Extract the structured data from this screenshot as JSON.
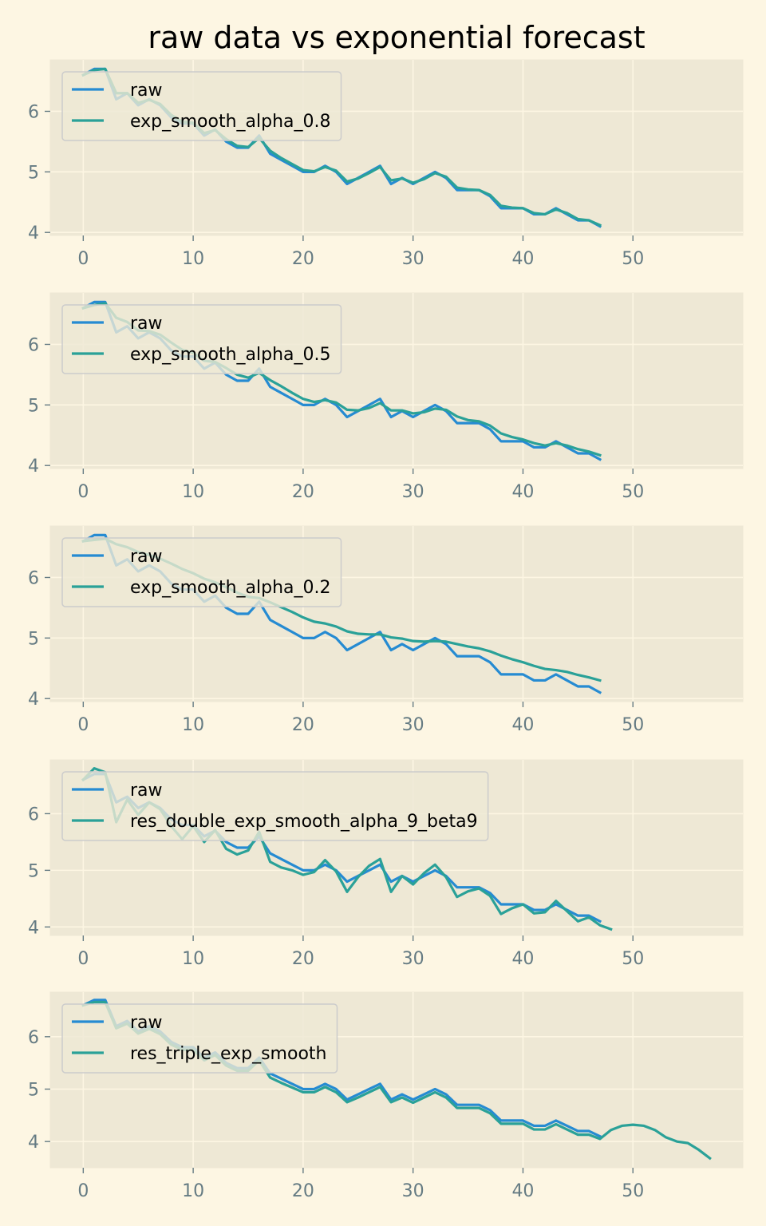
{
  "title": "raw data vs exponential forecast",
  "colors": {
    "figure_bg": "#fdf6e3",
    "axes_bg": "#eee8d5",
    "grid": "#fdf6e3",
    "tick": "#657b83",
    "raw": "#268bd2",
    "forecast": "#2aa198"
  },
  "chart_data": [
    {
      "type": "line",
      "xlim": [
        -3,
        60
      ],
      "ylim": [
        3.95,
        6.85
      ],
      "xticks": [
        0,
        10,
        20,
        30,
        40,
        50
      ],
      "yticks": [
        4,
        5,
        6
      ],
      "grid": true,
      "legend_position": "top-left",
      "series": [
        {
          "name": "raw",
          "x_start": 0,
          "values": [
            6.6,
            6.7,
            6.7,
            6.2,
            6.3,
            6.1,
            6.2,
            6.1,
            5.9,
            5.8,
            5.8,
            5.6,
            5.7,
            5.5,
            5.4,
            5.4,
            5.6,
            5.3,
            5.2,
            5.1,
            5.0,
            5.0,
            5.1,
            5.0,
            4.8,
            4.9,
            5.0,
            5.1,
            4.8,
            4.9,
            4.8,
            4.9,
            5.0,
            4.9,
            4.7,
            4.7,
            4.7,
            4.6,
            4.4,
            4.4,
            4.4,
            4.3,
            4.3,
            4.4,
            4.3,
            4.2,
            4.2,
            4.1
          ]
        },
        {
          "name": "exp_smooth_alpha_0.8",
          "x_start": 0,
          "values": [
            6.6,
            6.68,
            6.7,
            6.3,
            6.3,
            6.14,
            6.19,
            6.12,
            5.94,
            5.83,
            5.81,
            5.64,
            5.69,
            5.54,
            5.43,
            5.41,
            5.56,
            5.35,
            5.23,
            5.13,
            5.03,
            5.01,
            5.08,
            5.02,
            4.84,
            4.89,
            4.98,
            5.08,
            4.86,
            4.89,
            4.82,
            4.88,
            4.98,
            4.92,
            4.74,
            4.71,
            4.7,
            4.62,
            4.44,
            4.41,
            4.4,
            4.32,
            4.3,
            4.38,
            4.32,
            4.22,
            4.2,
            4.12
          ]
        }
      ]
    },
    {
      "type": "line",
      "xlim": [
        -3,
        60
      ],
      "ylim": [
        3.95,
        6.85
      ],
      "xticks": [
        0,
        10,
        20,
        30,
        40,
        50
      ],
      "yticks": [
        4,
        5,
        6
      ],
      "grid": true,
      "legend_position": "top-left",
      "series": [
        {
          "name": "raw",
          "x_start": 0,
          "values": [
            6.6,
            6.7,
            6.7,
            6.2,
            6.3,
            6.1,
            6.2,
            6.1,
            5.9,
            5.8,
            5.8,
            5.6,
            5.7,
            5.5,
            5.4,
            5.4,
            5.6,
            5.3,
            5.2,
            5.1,
            5.0,
            5.0,
            5.1,
            5.0,
            4.8,
            4.9,
            5.0,
            5.1,
            4.8,
            4.9,
            4.8,
            4.9,
            5.0,
            4.9,
            4.7,
            4.7,
            4.7,
            4.6,
            4.4,
            4.4,
            4.4,
            4.3,
            4.3,
            4.4,
            4.3,
            4.2,
            4.2,
            4.1
          ]
        },
        {
          "name": "exp_smooth_alpha_0.5",
          "x_start": 0,
          "values": [
            6.6,
            6.65,
            6.68,
            6.44,
            6.37,
            6.23,
            6.22,
            6.16,
            6.03,
            5.91,
            5.86,
            5.73,
            5.71,
            5.61,
            5.5,
            5.45,
            5.53,
            5.41,
            5.31,
            5.2,
            5.1,
            5.05,
            5.08,
            5.04,
            4.92,
            4.91,
            4.95,
            5.03,
            4.91,
            4.91,
            4.86,
            4.88,
            4.94,
            4.92,
            4.81,
            4.75,
            4.73,
            4.66,
            4.53,
            4.47,
            4.43,
            4.37,
            4.33,
            4.37,
            4.33,
            4.27,
            4.23,
            4.17
          ]
        }
      ]
    },
    {
      "type": "line",
      "xlim": [
        -3,
        60
      ],
      "ylim": [
        3.95,
        6.85
      ],
      "xticks": [
        0,
        10,
        20,
        30,
        40,
        50
      ],
      "yticks": [
        4,
        5,
        6
      ],
      "grid": true,
      "legend_position": "top-left",
      "series": [
        {
          "name": "raw",
          "x_start": 0,
          "values": [
            6.6,
            6.7,
            6.7,
            6.2,
            6.3,
            6.1,
            6.2,
            6.1,
            5.9,
            5.8,
            5.8,
            5.6,
            5.7,
            5.5,
            5.4,
            5.4,
            5.6,
            5.3,
            5.2,
            5.1,
            5.0,
            5.0,
            5.1,
            5.0,
            4.8,
            4.9,
            5.0,
            5.1,
            4.8,
            4.9,
            4.8,
            4.9,
            5.0,
            4.9,
            4.7,
            4.7,
            4.7,
            4.6,
            4.4,
            4.4,
            4.4,
            4.3,
            4.3,
            4.4,
            4.3,
            4.2,
            4.2,
            4.1
          ]
        },
        {
          "name": "exp_smooth_alpha_0.2",
          "x_start": 0,
          "values": [
            6.6,
            6.62,
            6.64,
            6.55,
            6.5,
            6.42,
            6.37,
            6.31,
            6.23,
            6.14,
            6.07,
            5.98,
            5.92,
            5.84,
            5.75,
            5.68,
            5.66,
            5.59,
            5.51,
            5.43,
            5.34,
            5.27,
            5.24,
            5.19,
            5.11,
            5.07,
            5.06,
            5.06,
            5.01,
            4.99,
            4.95,
            4.94,
            4.95,
            4.94,
            4.9,
            4.86,
            4.83,
            4.78,
            4.71,
            4.65,
            4.6,
            4.54,
            4.49,
            4.47,
            4.44,
            4.39,
            4.35,
            4.3
          ]
        }
      ]
    },
    {
      "type": "line",
      "xlim": [
        -3,
        60
      ],
      "ylim": [
        3.85,
        6.95
      ],
      "xticks": [
        0,
        10,
        20,
        30,
        40,
        50
      ],
      "yticks": [
        4,
        5,
        6
      ],
      "grid": true,
      "legend_position": "top-left",
      "series": [
        {
          "name": "raw",
          "x_start": 0,
          "values": [
            6.6,
            6.7,
            6.7,
            6.2,
            6.3,
            6.1,
            6.2,
            6.1,
            5.9,
            5.8,
            5.8,
            5.6,
            5.7,
            5.5,
            5.4,
            5.4,
            5.6,
            5.3,
            5.2,
            5.1,
            5.0,
            5.0,
            5.1,
            5.0,
            4.8,
            4.9,
            5.0,
            5.1,
            4.8,
            4.9,
            4.8,
            4.9,
            5.0,
            4.9,
            4.7,
            4.7,
            4.7,
            4.6,
            4.4,
            4.4,
            4.4,
            4.3,
            4.3,
            4.4,
            4.3,
            4.2,
            4.2,
            4.1
          ]
        },
        {
          "name": "res_double_exp_smooth_alpha_9_beta9",
          "x_start": 0,
          "values": [
            6.6,
            6.8,
            6.73,
            5.85,
            6.25,
            5.98,
            6.2,
            6.08,
            5.78,
            5.55,
            5.78,
            5.5,
            5.71,
            5.38,
            5.28,
            5.35,
            5.68,
            5.15,
            5.05,
            5.0,
            4.92,
            4.97,
            5.18,
            4.98,
            4.62,
            4.88,
            5.08,
            5.2,
            4.62,
            4.9,
            4.75,
            4.95,
            5.1,
            4.88,
            4.53,
            4.63,
            4.68,
            4.55,
            4.23,
            4.33,
            4.4,
            4.24,
            4.26,
            4.46,
            4.28,
            4.1,
            4.17,
            4.03,
            3.96
          ]
        }
      ]
    },
    {
      "type": "line",
      "xlim": [
        -3,
        60
      ],
      "ylim": [
        3.5,
        6.85
      ],
      "xticks": [
        0,
        10,
        20,
        30,
        40,
        50
      ],
      "yticks": [
        4,
        5,
        6
      ],
      "grid": true,
      "legend_position": "top-left",
      "series": [
        {
          "name": "raw",
          "x_start": 0,
          "values": [
            6.6,
            6.7,
            6.7,
            6.2,
            6.3,
            6.1,
            6.2,
            6.1,
            5.9,
            5.8,
            5.8,
            5.6,
            5.7,
            5.5,
            5.4,
            5.4,
            5.6,
            5.3,
            5.2,
            5.1,
            5.0,
            5.0,
            5.1,
            5.0,
            4.8,
            4.9,
            5.0,
            5.1,
            4.8,
            4.9,
            4.8,
            4.9,
            5.0,
            4.9,
            4.7,
            4.7,
            4.7,
            4.6,
            4.4,
            4.4,
            4.4,
            4.3,
            4.3,
            4.4,
            4.3,
            4.2,
            4.2,
            4.1
          ]
        },
        {
          "name": "res_triple_exp_smooth",
          "x_start": 0,
          "values": [
            6.6,
            6.66,
            6.66,
            6.16,
            6.25,
            6.06,
            6.15,
            6.05,
            5.85,
            5.75,
            5.75,
            5.55,
            5.65,
            5.45,
            5.35,
            5.35,
            5.55,
            5.22,
            5.12,
            5.03,
            4.94,
            4.94,
            5.04,
            4.94,
            4.75,
            4.84,
            4.94,
            5.04,
            4.75,
            4.84,
            4.74,
            4.84,
            4.94,
            4.84,
            4.64,
            4.64,
            4.64,
            4.54,
            4.34,
            4.34,
            4.34,
            4.23,
            4.23,
            4.33,
            4.23,
            4.13,
            4.13,
            4.05,
            4.22,
            4.3,
            4.32,
            4.3,
            4.22,
            4.08,
            4.0,
            3.97,
            3.84,
            3.68
          ]
        }
      ]
    }
  ]
}
